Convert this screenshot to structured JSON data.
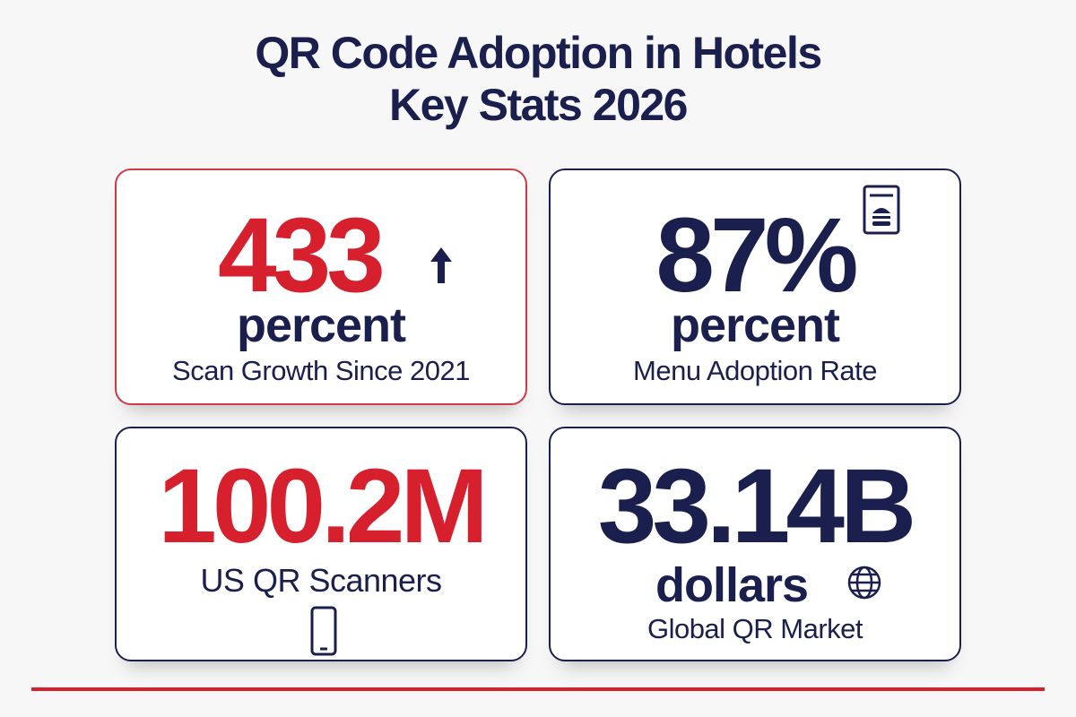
{
  "header": {
    "title_line1": "QR Code Adoption in Hotels",
    "title_line2": "Key Stats 2026"
  },
  "cards": [
    {
      "value": "433",
      "unit": "percent",
      "label": "Scan Growth Since 2021"
    },
    {
      "value": "87%",
      "unit": "percent",
      "label": "Menu Adoption Rate"
    },
    {
      "value": "100.2M",
      "label": "US QR Scanners"
    },
    {
      "value": "33.14B",
      "unit": "dollars",
      "label": "Global QR Market"
    }
  ]
}
